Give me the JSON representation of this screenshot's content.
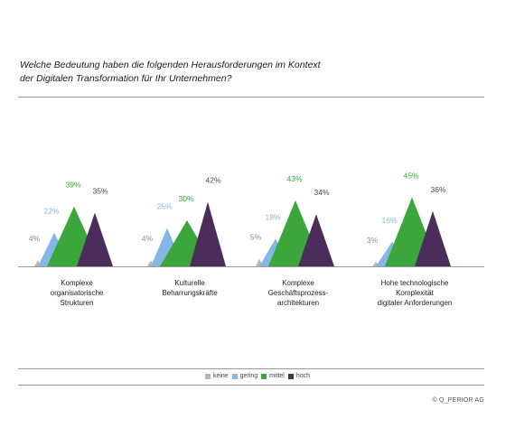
{
  "question_line1": "Welche Bedeutung haben die folgenden Herausforderungen im Kontext",
  "question_line2": "der Digitalen Transformation für Ihr Unternehmen?",
  "copyright": "© Q_PERIOR AG",
  "chart_data": {
    "type": "area",
    "categories": [
      [
        "Komplexe",
        "organisatorische",
        "Strukturen"
      ],
      [
        "Kulturelle",
        "Beharrungskräfte"
      ],
      [
        "Komplexe",
        "Geschäftsprozess-",
        "architekturen"
      ],
      [
        "Hohe technologische",
        "Komplexität",
        "digitaler Anforderungen"
      ]
    ],
    "series": [
      {
        "name": "keine",
        "values": [
          4,
          4,
          5,
          3
        ],
        "color": "#b7b7b7",
        "label_color": "#8c8c8c"
      },
      {
        "name": "gering",
        "values": [
          22,
          25,
          18,
          16
        ],
        "color": "#86b6e6",
        "label_color": "#86b6e6"
      },
      {
        "name": "mittel",
        "values": [
          39,
          30,
          43,
          45
        ],
        "color": "#3aa63c",
        "label_color": "#3aa63c"
      },
      {
        "name": "hoch",
        "values": [
          35,
          42,
          34,
          36
        ],
        "color": "#4a2d5a",
        "label_color": "#4a4a4a"
      }
    ],
    "value_suffix": "%",
    "legend_position": "bottom-center",
    "grid": false
  }
}
